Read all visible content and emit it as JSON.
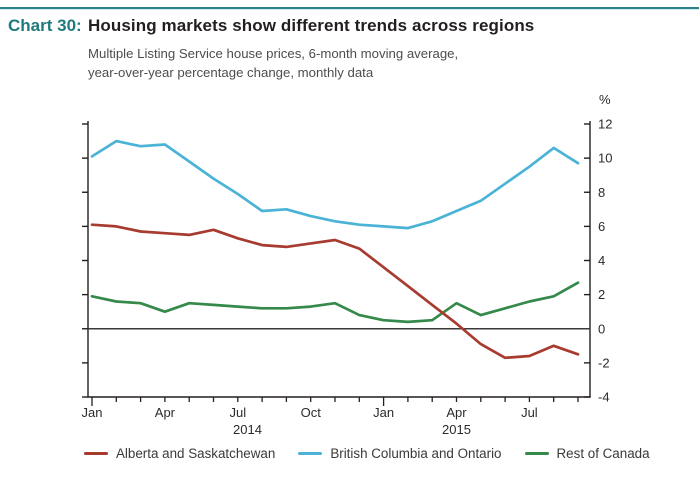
{
  "header": {
    "chart_label": "Chart 30:",
    "title": "Housing markets show different trends across regions",
    "subtitle_line1": "Multiple Listing Service house prices, 6-month moving average,",
    "subtitle_line2": "year-over-year percentage change, monthly data"
  },
  "colors": {
    "accent_teal": "#1e7b7d",
    "top_rule": "#2e8187",
    "title_text": "#231f20",
    "subtitle_text": "#4d4d4d",
    "axis": "#231f20",
    "zero_line": "#3a3a3a",
    "tick_label": "#2b2b2b"
  },
  "chart_data": {
    "type": "line",
    "unit_label": "%",
    "ylim": [
      -4,
      12
    ],
    "ytick_step": 2,
    "grid": false,
    "legend_position": "bottom",
    "x": [
      "Jan 2014",
      "Feb 2014",
      "Mar 2014",
      "Apr 2014",
      "May 2014",
      "Jun 2014",
      "Jul 2014",
      "Aug 2014",
      "Sep 2014",
      "Oct 2014",
      "Nov 2014",
      "Dec 2014",
      "Jan 2015",
      "Feb 2015",
      "Mar 2015",
      "Apr 2015",
      "May 2015",
      "Jun 2015",
      "Jul 2015",
      "Aug 2015",
      "Sep 2015"
    ],
    "month_tick_labels": [
      {
        "index": 0,
        "label": "Jan"
      },
      {
        "index": 3,
        "label": "Apr"
      },
      {
        "index": 6,
        "label": "Jul"
      },
      {
        "index": 9,
        "label": "Oct"
      },
      {
        "index": 12,
        "label": "Jan"
      },
      {
        "index": 15,
        "label": "Apr"
      },
      {
        "index": 18,
        "label": "Jul"
      }
    ],
    "year_labels": [
      {
        "label": "2014",
        "month_index": 6.4
      },
      {
        "label": "2015",
        "month_index": 15.0
      }
    ],
    "major_tick_indexes": [
      0,
      12
    ],
    "series": [
      {
        "name": "British Columbia and Ontario",
        "color": "#4ab3d6",
        "values": [
          10.1,
          11.0,
          10.7,
          10.8,
          9.8,
          8.8,
          7.9,
          6.9,
          7.0,
          6.6,
          6.3,
          6.1,
          6.0,
          5.9,
          6.3,
          6.9,
          7.5,
          8.5,
          9.5,
          10.6,
          9.7
        ]
      },
      {
        "name": "Rest of Canada",
        "color": "#35894a",
        "values": [
          1.9,
          1.6,
          1.5,
          1.0,
          1.5,
          1.4,
          1.3,
          1.2,
          1.2,
          1.3,
          1.5,
          0.8,
          0.5,
          0.4,
          0.5,
          1.5,
          0.8,
          1.2,
          1.6,
          1.9,
          2.7
        ]
      },
      {
        "name": "Alberta and Saskatchewan",
        "color": "#a73b30",
        "values": [
          6.1,
          6.0,
          5.7,
          5.6,
          5.5,
          5.8,
          5.3,
          4.9,
          4.8,
          5.0,
          5.2,
          4.7,
          3.6,
          2.5,
          1.4,
          0.3,
          -0.9,
          -1.7,
          -1.6,
          -1.0,
          -1.5
        ]
      }
    ],
    "legend_order": [
      "Alberta and Saskatchewan",
      "British Columbia and Ontario",
      "Rest of Canada"
    ]
  }
}
